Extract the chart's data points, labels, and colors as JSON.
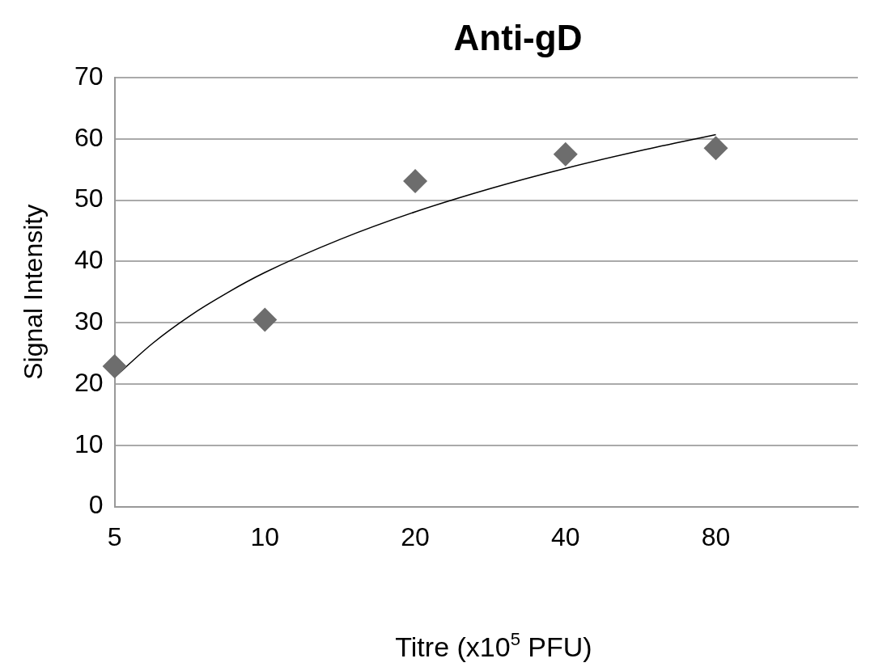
{
  "chart_data": {
    "type": "scatter",
    "title": "Anti-gD",
    "xlabel": "Titre (x10$^{5}$ PFU)",
    "ylabel": "Signal Intensity",
    "log": "x",
    "xlim": [
      5,
      154
    ],
    "xticks": [
      5,
      10,
      20,
      40,
      80
    ],
    "ylim": [
      0,
      70
    ],
    "yticks": [
      0,
      10,
      20,
      30,
      40,
      50,
      60,
      70
    ],
    "grid": "y",
    "legend": false,
    "marker": "diamond",
    "series": [
      {
        "color": "#6d6d6d",
        "x": [
          5,
          10,
          20,
          40,
          80
        ],
        "values": [
          22.9,
          30.5,
          53.1,
          57.5,
          58.5
        ]
      },
      {
        "type": "line",
        "color": "#000000",
        "marker": "none",
        "line_style": "solid",
        "x": [
          5,
          5.95,
          7.07,
          8.41,
          10,
          14.14,
          20,
          28.28,
          40,
          56.57,
          80
        ],
        "values": [
          21.1,
          26.6,
          31.1,
          34.9,
          38.2,
          43.6,
          48.1,
          51.9,
          55.2,
          58.1,
          60.7
        ]
      }
    ]
  }
}
